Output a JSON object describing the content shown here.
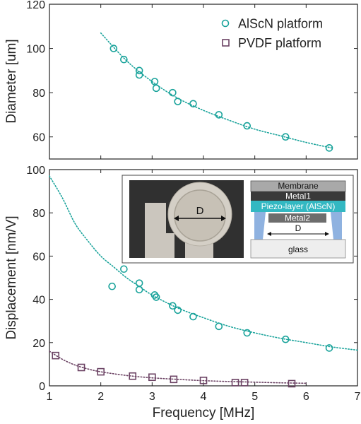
{
  "chart_data": [
    {
      "type": "scatter",
      "xlabel": "",
      "ylabel": "Diameter [um]",
      "xlim": [
        1,
        7
      ],
      "ylim": [
        50,
        120
      ],
      "yticks": [
        60,
        80,
        100,
        120
      ],
      "legend_position": "top-right",
      "series": [
        {
          "name": "AlScN platform",
          "marker": "circle",
          "color": "#1aa39b",
          "x": [
            2.25,
            2.45,
            2.75,
            2.75,
            3.05,
            3.08,
            3.4,
            3.5,
            3.8,
            4.3,
            4.85,
            5.6,
            6.45
          ],
          "y": [
            100,
            95,
            90,
            88,
            85,
            82,
            80,
            76,
            75,
            70,
            65,
            60,
            55
          ]
        }
      ],
      "fit_curves": [
        {
          "series": "AlScN platform",
          "style": "dotted",
          "color": "#1aa39b",
          "x": [
            2.0,
            2.5,
            3.0,
            3.5,
            4.0,
            4.5,
            5.0,
            5.5,
            6.0,
            6.5
          ],
          "y": [
            107,
            94.5,
            85,
            77.5,
            72,
            67.5,
            63.5,
            60.5,
            57.5,
            55
          ]
        }
      ]
    },
    {
      "type": "scatter",
      "xlabel": "Frequency [MHz]",
      "ylabel": "Displacement [nm/V]",
      "xlim": [
        1,
        7
      ],
      "ylim": [
        0,
        100
      ],
      "xticks": [
        1,
        2,
        3,
        4,
        5,
        6,
        7
      ],
      "yticks": [
        0,
        20,
        40,
        60,
        80,
        100
      ],
      "series": [
        {
          "name": "AlScN platform",
          "marker": "circle",
          "color": "#1aa39b",
          "x": [
            2.22,
            2.45,
            2.75,
            2.75,
            3.05,
            3.08,
            3.4,
            3.5,
            3.8,
            4.3,
            4.85,
            5.6,
            6.45
          ],
          "y": [
            46,
            54,
            47.5,
            44.5,
            42,
            41,
            37,
            35,
            32,
            27.5,
            24.5,
            21.5,
            17.5
          ]
        },
        {
          "name": "PVDF platform",
          "marker": "square",
          "color": "#6b4263",
          "x": [
            1.12,
            1.62,
            2.0,
            2.62,
            3.0,
            3.42,
            4.0,
            4.62,
            4.8,
            5.72
          ],
          "y": [
            14,
            8.5,
            6.5,
            4.5,
            4,
            3,
            2.5,
            1.5,
            1.5,
            1
          ]
        }
      ],
      "fit_curves": [
        {
          "series": "AlScN platform",
          "style": "dotted",
          "color": "#1aa39b",
          "x": [
            1.0,
            1.25,
            1.5,
            1.75,
            2.0,
            2.25,
            2.5,
            2.75,
            3.0,
            3.5,
            4.0,
            4.5,
            5.0,
            5.5,
            6.0,
            6.5,
            7.0
          ],
          "y": [
            97,
            87,
            75,
            67,
            60,
            55,
            50,
            46,
            42,
            36,
            31.5,
            27.5,
            24.5,
            22,
            20,
            18,
            16.5
          ]
        },
        {
          "series": "PVDF platform",
          "style": "dotted",
          "color": "#6b4263",
          "x": [
            1.0,
            1.25,
            1.5,
            1.75,
            2.0,
            2.5,
            3.0,
            3.5,
            4.0,
            4.5,
            5.0,
            5.5,
            6.0
          ],
          "y": [
            16,
            12.3,
            9.6,
            7.8,
            6.5,
            4.8,
            3.7,
            3.0,
            2.4,
            2.0,
            1.7,
            1.4,
            1.2
          ]
        }
      ],
      "inset": {
        "photo_label": "D",
        "schematic_labels": [
          "Membrane",
          "Metal1",
          "Piezo-layer (AlScN)",
          "Metal2",
          "D",
          "glass"
        ]
      }
    }
  ]
}
